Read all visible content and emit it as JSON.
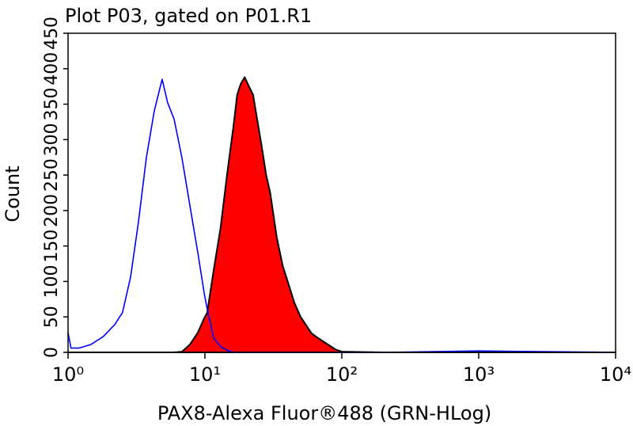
{
  "chart_data": {
    "type": "histogram-overlay",
    "title": "Plot P03, gated on P01.R1",
    "x_label": "PAX8-Alexa Fluor®488 (GRN-HLog)",
    "y_label": "Count",
    "xscale": "log",
    "xlim": [
      1,
      10000
    ],
    "xticks": [
      {
        "value": 1,
        "label": "10⁰"
      },
      {
        "value": 10,
        "label": "10¹"
      },
      {
        "value": 100,
        "label": "10²"
      },
      {
        "value": 1000,
        "label": "10³"
      },
      {
        "value": 10000,
        "label": "10⁴"
      }
    ],
    "ylim": [
      0,
      450
    ],
    "yticks": [
      0,
      50,
      100,
      150,
      200,
      250,
      300,
      350,
      400,
      450
    ],
    "x": [
      1,
      1.05,
      1.2,
      1.47,
      1.8,
      2.19,
      2.5,
      2.86,
      3.27,
      3.73,
      4.26,
      4.87,
      5.34,
      5.95,
      6.8,
      7.77,
      8.88,
      9.87,
      10.4,
      11.6,
      13,
      14.5,
      16.2,
      17.2,
      18.2,
      19.5,
      21,
      22.5,
      24,
      26,
      28,
      30,
      33.5,
      37,
      41,
      45,
      50,
      55,
      60,
      65,
      75,
      90,
      100,
      200,
      1000,
      10000
    ],
    "series": [
      {
        "color": "#0000ff",
        "fill": false,
        "values": [
          28,
          6,
          6,
          11,
          22,
          39,
          56,
          106,
          184,
          274,
          340,
          385,
          352,
          329,
          274,
          207,
          140,
          84,
          61,
          20,
          8,
          3,
          0,
          0,
          0,
          0,
          0,
          0,
          0,
          0,
          0,
          0,
          0,
          0,
          0,
          0,
          0,
          0,
          0,
          0,
          0,
          0,
          0,
          0,
          2,
          0
        ]
      },
      {
        "color": "#ff0000",
        "fill": true,
        "values": [
          0,
          0,
          0,
          0,
          0,
          0,
          0,
          0,
          0,
          0,
          0,
          0,
          0,
          0,
          1,
          11,
          28,
          48,
          56,
          117,
          175,
          250,
          320,
          363,
          378,
          388,
          375,
          363,
          330,
          290,
          250,
          225,
          162,
          122,
          95,
          70,
          50,
          38,
          27,
          22,
          14,
          4,
          1,
          0,
          0,
          0
        ]
      }
    ]
  }
}
